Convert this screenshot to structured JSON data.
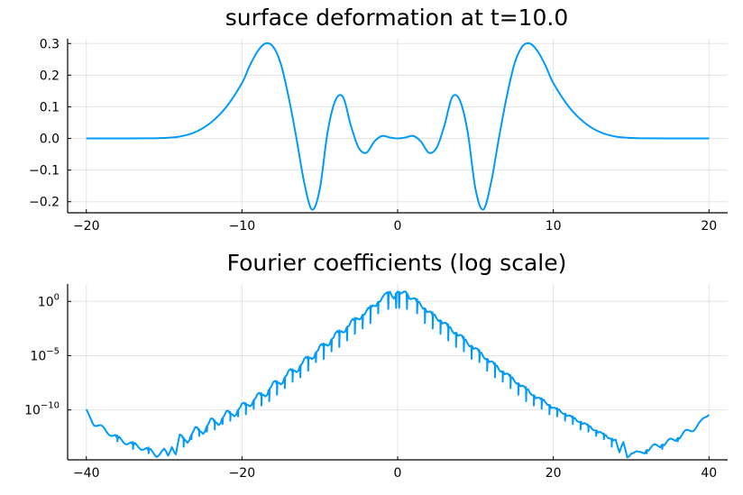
{
  "chart_data": [
    {
      "type": "line",
      "title": "surface deformation at t=10.0",
      "xlabel": "",
      "ylabel": "",
      "xlim": [
        -21.2,
        21.2
      ],
      "ylim": [
        -0.235,
        0.315
      ],
      "xticks": [
        -20,
        -10,
        0,
        10,
        20
      ],
      "xtick_labels": [
        "−20",
        "−10",
        "0",
        "10",
        "20"
      ],
      "yticks": [
        -0.2,
        -0.1,
        0.0,
        0.1,
        0.2,
        0.3
      ],
      "ytick_labels": [
        "−0.2",
        "−0.1",
        "0.0",
        "0.1",
        "0.2",
        "0.3"
      ],
      "grid": true,
      "legend": "none",
      "color": "#009af9",
      "series": [
        {
          "name": "y1",
          "x": [
            -20,
            -18,
            -16,
            -15,
            -14,
            -13,
            -12,
            -11,
            -10,
            -9.5,
            -9,
            -8.5,
            -8,
            -7.5,
            -7,
            -6.5,
            -6,
            -5.5,
            -5,
            -4.5,
            -4,
            -3.5,
            -3,
            -2.5,
            -2,
            -1.5,
            -1,
            -0.5,
            0,
            0.5,
            1,
            1.5,
            2,
            2.5,
            3,
            3.5,
            4,
            4.5,
            5,
            5.5,
            6,
            6.5,
            7,
            7.5,
            8,
            8.5,
            9,
            9.5,
            10,
            11,
            12,
            13,
            14,
            15,
            16,
            18,
            20
          ],
          "y": [
            0.0,
            0.0,
            0.0003,
            0.0015,
            0.006,
            0.02,
            0.05,
            0.1,
            0.175,
            0.23,
            0.275,
            0.3,
            0.29,
            0.235,
            0.13,
            0.0,
            -0.14,
            -0.225,
            -0.16,
            0.02,
            0.12,
            0.13,
            0.04,
            -0.03,
            -0.045,
            -0.01,
            0.008,
            0.003,
            0.0,
            0.003,
            0.008,
            -0.01,
            -0.045,
            -0.03,
            0.04,
            0.13,
            0.12,
            0.02,
            -0.16,
            -0.225,
            -0.14,
            0.0,
            0.13,
            0.235,
            0.29,
            0.3,
            0.275,
            0.23,
            0.175,
            0.1,
            0.05,
            0.02,
            0.006,
            0.0015,
            0.0003,
            0.0,
            0.0
          ]
        }
      ]
    },
    {
      "type": "line",
      "title": "Fourier coefficients (log scale)",
      "xlabel": "",
      "ylabel": "",
      "yscale": "log",
      "xlim": [
        -42.4,
        42.4
      ],
      "ylim_log10": [
        -14.6,
        1.6
      ],
      "xticks": [
        -40,
        -20,
        0,
        20,
        40
      ],
      "xtick_labels": [
        "−40",
        "−20",
        "0",
        "20",
        "40"
      ],
      "yticks_log10": [
        0,
        -5,
        -10
      ],
      "ytick_base": "10",
      "ytick_exponents": [
        "0",
        "−5",
        "−10"
      ],
      "grid": true,
      "legend": "none",
      "color": "#009af9",
      "series": [
        {
          "name": "y1",
          "x": [
            -40,
            -39,
            -38,
            -37,
            -36,
            -35,
            -34,
            -33,
            -32,
            -31,
            -30,
            -29.5,
            -29,
            -28.5,
            -28,
            -27,
            -26,
            -25,
            -24,
            -23,
            -22,
            -21,
            -20,
            -19,
            -18,
            -17,
            -16,
            -15,
            -14,
            -13,
            -12,
            -11,
            -10,
            -9,
            -8,
            -7,
            -6,
            -5,
            -4,
            -3,
            -2,
            -1.5,
            -1,
            -0.5,
            0,
            0.5,
            1,
            1.5,
            2,
            3,
            4,
            5,
            6,
            7,
            8,
            9,
            10,
            11,
            12,
            13,
            14,
            15,
            16,
            17,
            18,
            19,
            20,
            21,
            22,
            23,
            24,
            25,
            26,
            27,
            28,
            28.5,
            29,
            29.5,
            30,
            31,
            32,
            33,
            34,
            35,
            36,
            37,
            38,
            39,
            40
          ],
          "y_log10": [
            -10.2,
            -11.2,
            -11.7,
            -12.1,
            -12.6,
            -12.9,
            -13.2,
            -13.4,
            -13.7,
            -14.1,
            -13.8,
            -14.3,
            -13.2,
            -14.0,
            -12.5,
            -12.8,
            -11.8,
            -12.0,
            -11.0,
            -11.2,
            -10.3,
            -10.4,
            -9.6,
            -9.5,
            -8.7,
            -8.6,
            -7.6,
            -7.5,
            -6.5,
            -6.4,
            -5.4,
            -5.2,
            -4.2,
            -4.0,
            -3.0,
            -2.8,
            -1.9,
            -1.6,
            -0.9,
            -0.4,
            0.3,
            0.5,
            0.9,
            0.5,
            0.9,
            0.5,
            0.9,
            0.5,
            0.3,
            -0.4,
            -0.9,
            -1.6,
            -1.9,
            -2.8,
            -3.0,
            -4.0,
            -4.2,
            -5.2,
            -5.4,
            -6.4,
            -6.5,
            -7.5,
            -7.6,
            -8.6,
            -8.7,
            -9.5,
            -9.6,
            -10.4,
            -10.3,
            -11.2,
            -11.0,
            -12.0,
            -11.8,
            -12.8,
            -12.5,
            -14.0,
            -13.2,
            -14.3,
            -13.8,
            -14.1,
            -13.7,
            -13.4,
            -13.2,
            -12.9,
            -12.6,
            -12.1,
            -11.7,
            -11.2,
            -10.2
          ],
          "dips_log10": [
            [
              -36,
              -12.9
            ],
            [
              -34,
              -13.6
            ],
            [
              -32,
              -14.0
            ],
            [
              -27.5,
              -13.4
            ],
            [
              -26.5,
              -12.7
            ],
            [
              -25.5,
              -12.4
            ],
            [
              -24.5,
              -12.0
            ],
            [
              -23.5,
              -11.8
            ],
            [
              -22.5,
              -11.3
            ],
            [
              -21.5,
              -11.0
            ],
            [
              -20.5,
              -10.6
            ],
            [
              -19.5,
              -10.4
            ],
            [
              -18.5,
              -9.9
            ],
            [
              -17.5,
              -9.6
            ],
            [
              -16.5,
              -9.2
            ],
            [
              -15.5,
              -8.6
            ],
            [
              -14.5,
              -8.0
            ],
            [
              -13.5,
              -7.4
            ],
            [
              -12.5,
              -7.0
            ],
            [
              -11.5,
              -6.4
            ],
            [
              -10.5,
              -5.6
            ],
            [
              -9.5,
              -5.3
            ],
            [
              -8.5,
              -4.6
            ],
            [
              -7.5,
              -4.2
            ],
            [
              -6.5,
              -3.6
            ],
            [
              -5.5,
              -3.0
            ],
            [
              -4.5,
              -2.5
            ],
            [
              -3.5,
              -2.0
            ],
            [
              -2.5,
              -1.1
            ],
            [
              -1.2,
              -0.7
            ],
            [
              -0.2,
              -0.6
            ],
            [
              0.2,
              -0.6
            ],
            [
              1.2,
              -0.7
            ],
            [
              2.5,
              -1.1
            ],
            [
              3.5,
              -2.0
            ],
            [
              4.5,
              -2.5
            ],
            [
              5.5,
              -3.0
            ],
            [
              6.5,
              -3.6
            ],
            [
              7.5,
              -4.2
            ],
            [
              8.5,
              -4.6
            ],
            [
              9.5,
              -5.3
            ],
            [
              10.5,
              -5.6
            ],
            [
              11.5,
              -6.4
            ],
            [
              12.5,
              -7.0
            ],
            [
              13.5,
              -7.4
            ],
            [
              14.5,
              -8.0
            ],
            [
              15.5,
              -8.6
            ],
            [
              16.5,
              -9.2
            ],
            [
              17.5,
              -9.6
            ],
            [
              18.5,
              -9.9
            ],
            [
              19.5,
              -10.4
            ],
            [
              20.5,
              -10.6
            ],
            [
              21.5,
              -11.0
            ],
            [
              22.5,
              -11.3
            ],
            [
              23.5,
              -11.8
            ],
            [
              24.5,
              -12.0
            ],
            [
              25.5,
              -12.4
            ],
            [
              26.5,
              -12.7
            ],
            [
              27.5,
              -13.4
            ],
            [
              32,
              -14.0
            ],
            [
              34,
              -13.6
            ],
            [
              36,
              -12.9
            ]
          ]
        }
      ]
    }
  ]
}
